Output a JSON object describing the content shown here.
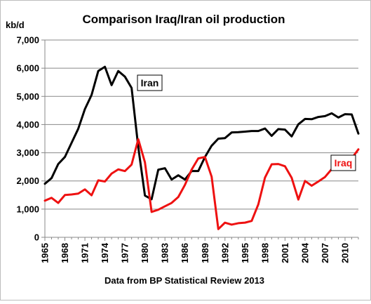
{
  "chart_data": {
    "type": "line",
    "title": "Comparison Iraq/Iran oil production",
    "ylabel": "kb/d",
    "xlabel": "Data from BP Statistical Review 2013",
    "ylim": [
      0,
      7000
    ],
    "xlim": [
      1965,
      2012
    ],
    "y_ticks": [
      0,
      1000,
      2000,
      3000,
      4000,
      5000,
      6000,
      7000
    ],
    "y_tick_labels": [
      "0",
      "1,000",
      "2,000",
      "3,000",
      "4,000",
      "5,000",
      "6,000",
      "7,000"
    ],
    "x_ticks": [
      1965,
      1968,
      1971,
      1974,
      1977,
      1980,
      1983,
      1986,
      1989,
      1992,
      1995,
      1998,
      2001,
      2004,
      2007,
      2010
    ],
    "grid": "horizontal",
    "legend": "direct labels",
    "x": [
      1965,
      1966,
      1967,
      1968,
      1969,
      1970,
      1971,
      1972,
      1973,
      1974,
      1975,
      1976,
      1977,
      1978,
      1979,
      1980,
      1981,
      1982,
      1983,
      1984,
      1985,
      1986,
      1987,
      1988,
      1989,
      1990,
      1991,
      1992,
      1993,
      1994,
      1995,
      1996,
      1997,
      1998,
      1999,
      2000,
      2001,
      2002,
      2003,
      2004,
      2005,
      2006,
      2007,
      2008,
      2009,
      2010,
      2011,
      2012
    ],
    "series": [
      {
        "name": "Iran",
        "color": "#000000",
        "values": [
          1900,
          2100,
          2600,
          2850,
          3350,
          3850,
          4550,
          5050,
          5900,
          6050,
          5400,
          5900,
          5700,
          5300,
          3200,
          1480,
          1350,
          2400,
          2450,
          2050,
          2200,
          2050,
          2350,
          2350,
          2850,
          3250,
          3500,
          3520,
          3720,
          3730,
          3750,
          3770,
          3770,
          3860,
          3600,
          3840,
          3820,
          3580,
          4010,
          4200,
          4190,
          4270,
          4300,
          4400,
          4250,
          4370,
          4360,
          3680
        ]
      },
      {
        "name": "Iraq",
        "color": "#ee1111",
        "values": [
          1300,
          1400,
          1220,
          1500,
          1520,
          1550,
          1700,
          1490,
          2020,
          1980,
          2260,
          2410,
          2350,
          2580,
          3480,
          2660,
          900,
          980,
          1100,
          1220,
          1430,
          1860,
          2400,
          2800,
          2850,
          2150,
          290,
          520,
          450,
          500,
          520,
          580,
          1170,
          2120,
          2590,
          2600,
          2520,
          2110,
          1340,
          2000,
          1830,
          1980,
          2140,
          2420,
          2450,
          2500,
          2800,
          3120
        ]
      }
    ]
  }
}
